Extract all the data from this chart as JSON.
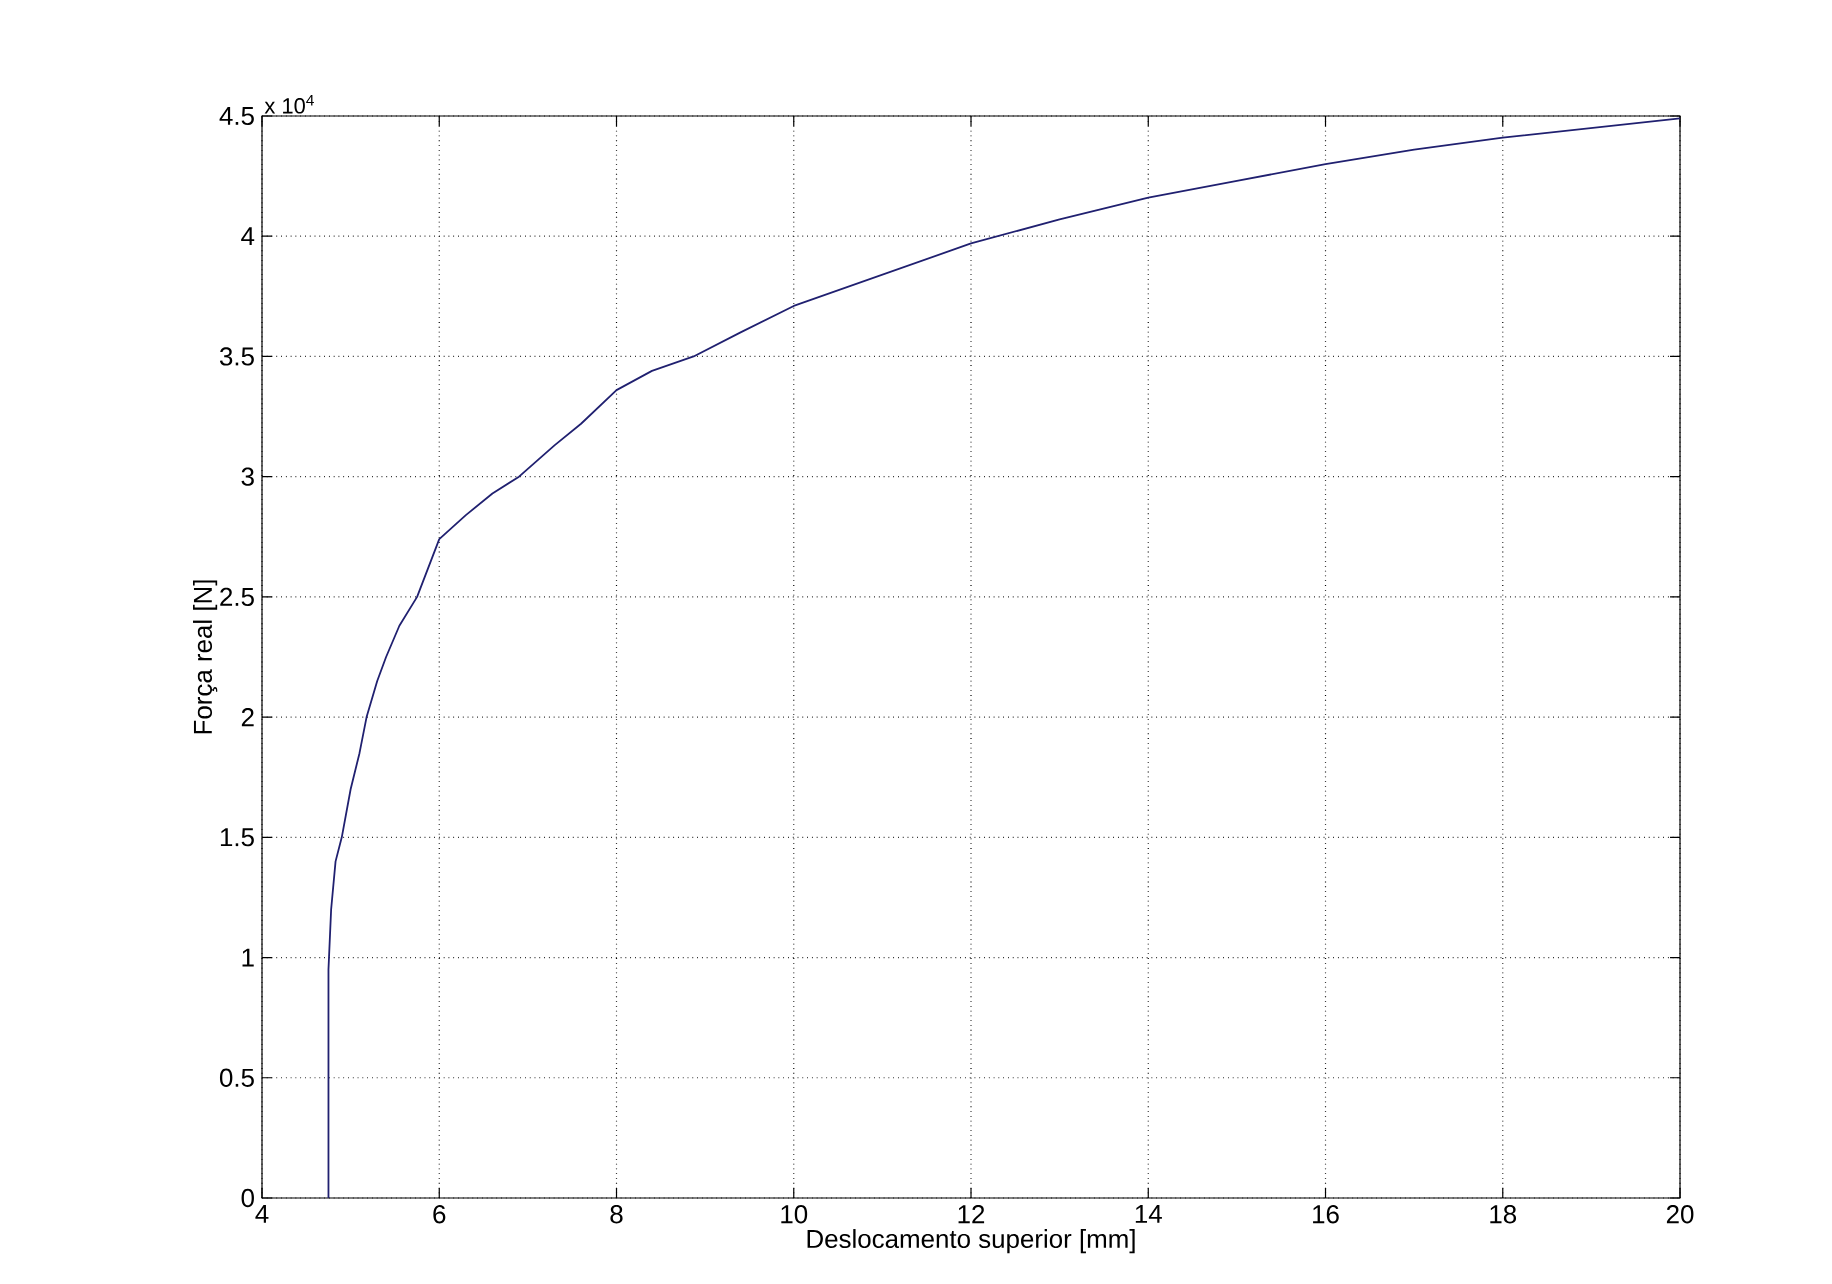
{
  "chart_data": {
    "type": "line",
    "xlabel": "Deslocamento superior [mm]",
    "ylabel": "Força real [N]",
    "annotations": [
      "x 10$^{4}$"
    ],
    "x": [
      4.75,
      4.75,
      4.78,
      4.83,
      4.9,
      5.0,
      5.1,
      5.18,
      5.3,
      5.4,
      5.55,
      5.75,
      6,
      6.3,
      6.6,
      6.9,
      7.3,
      7.6,
      8,
      8.4,
      8.87,
      9.4,
      10,
      11,
      12,
      13,
      14,
      15,
      16,
      17,
      18,
      19,
      20
    ],
    "series": [
      {
        "color": "#202070",
        "values": [
          0,
          0.95,
          1.2,
          1.4,
          1.5,
          1.7,
          1.85,
          2.0,
          2.15,
          2.25,
          2.38,
          2.5,
          2.74,
          2.84,
          2.93,
          3.0,
          3.13,
          3.22,
          3.36,
          3.44,
          3.5,
          3.6,
          3.71,
          3.84,
          3.97,
          4.07,
          4.16,
          4.23,
          4.3,
          4.36,
          4.41,
          4.45,
          4.49
        ]
      }
    ],
    "xlim": [
      4,
      20
    ],
    "ylim": [
      0,
      4.5
    ],
    "xticks": [
      4,
      6,
      8,
      10,
      12,
      14,
      16,
      18,
      20
    ],
    "yticks": [
      0,
      0.5,
      1,
      1.5,
      2,
      2.5,
      3,
      3.5,
      4,
      4.5
    ],
    "grid": true,
    "line_style": "solid",
    "marker": "none"
  }
}
